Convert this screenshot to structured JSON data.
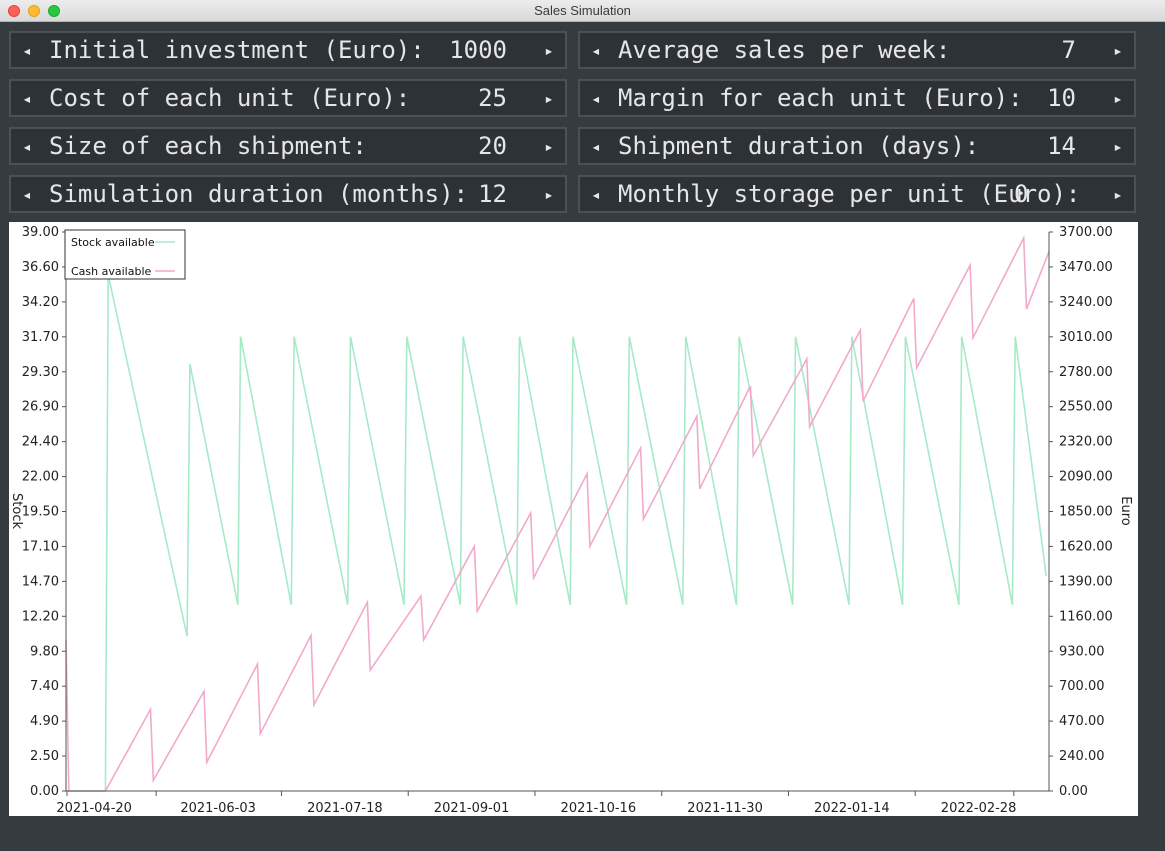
{
  "window": {
    "title": "Sales Simulation"
  },
  "params": [
    {
      "label": "Initial investment (Euro):",
      "value": "1000"
    },
    {
      "label": "Average sales per week:",
      "value": "7"
    },
    {
      "label": "Cost of each unit (Euro):",
      "value": "25"
    },
    {
      "label": "Margin for each unit (Euro):",
      "value": "10"
    },
    {
      "label": "Size of each shipment:",
      "value": "20"
    },
    {
      "label": "Shipment duration (days):",
      "value": "14"
    },
    {
      "label": "Simulation duration (months):",
      "value": "12"
    },
    {
      "label": "Monthly storage per unit (Euro):",
      "value": "0"
    }
  ],
  "arrows": {
    "decrease": "◂",
    "increase": "▸"
  },
  "colors": {
    "stock": "#a6eac8",
    "cash": "#f2a9cc",
    "background": "#353b3f"
  },
  "chart_data": {
    "type": "line",
    "ylabel_left": "Stock",
    "ylabel_right": "Euro",
    "ylim_left": [
      0,
      39
    ],
    "ylim_right": [
      0,
      3700
    ],
    "yticks_left": [
      "0.00",
      "2.50",
      "4.90",
      "7.40",
      "9.80",
      "12.20",
      "14.70",
      "17.10",
      "19.50",
      "22.00",
      "24.40",
      "26.90",
      "29.30",
      "31.70",
      "34.20",
      "36.60",
      "39.00"
    ],
    "yticks_right": [
      "0.00",
      "240.00",
      "470.00",
      "700.00",
      "930.00",
      "1160.00",
      "1390.00",
      "1620.00",
      "1850.00",
      "2090.00",
      "2320.00",
      "2550.00",
      "2780.00",
      "3010.00",
      "3240.00",
      "3470.00",
      "3700.00"
    ],
    "x_start": "2021-04-10",
    "x_end": "2022-03-25",
    "xticks": [
      "2021-04-20",
      "2021-06-03",
      "2021-07-18",
      "2021-09-01",
      "2021-10-16",
      "2021-11-30",
      "2022-01-14",
      "2022-02-28"
    ],
    "legend": {
      "position": "top-left",
      "entries": [
        "Stock available",
        "Cash available"
      ]
    },
    "series": [
      {
        "name": "Stock available",
        "axis": "left",
        "points": [
          [
            "2021-04-10",
            0
          ],
          [
            "2021-04-24",
            0
          ],
          [
            "2021-04-25",
            36
          ],
          [
            "2021-05-23",
            10.8
          ],
          [
            "2021-05-24",
            29.8
          ],
          [
            "2021-06-10",
            13
          ],
          [
            "2021-06-11",
            31.7
          ],
          [
            "2021-06-29",
            13
          ],
          [
            "2021-06-30",
            31.7
          ],
          [
            "2021-07-19",
            13
          ],
          [
            "2021-07-20",
            31.7
          ],
          [
            "2021-08-08",
            13
          ],
          [
            "2021-08-09",
            31.7
          ],
          [
            "2021-08-28",
            13
          ],
          [
            "2021-08-29",
            31.7
          ],
          [
            "2021-09-17",
            13
          ],
          [
            "2021-09-18",
            31.7
          ],
          [
            "2021-10-06",
            13
          ],
          [
            "2021-10-07",
            31.7
          ],
          [
            "2021-10-26",
            13
          ],
          [
            "2021-10-27",
            31.7
          ],
          [
            "2021-11-15",
            13
          ],
          [
            "2021-11-16",
            31.7
          ],
          [
            "2021-12-04",
            13
          ],
          [
            "2021-12-05",
            31.7
          ],
          [
            "2021-12-24",
            13
          ],
          [
            "2021-12-25",
            31.7
          ],
          [
            "2022-01-13",
            13
          ],
          [
            "2022-01-14",
            31.7
          ],
          [
            "2022-02-01",
            13
          ],
          [
            "2022-02-02",
            31.7
          ],
          [
            "2022-02-21",
            13
          ],
          [
            "2022-02-22",
            31.7
          ],
          [
            "2022-03-12",
            13
          ],
          [
            "2022-03-13",
            31.7
          ],
          [
            "2022-03-24",
            15
          ]
        ]
      },
      {
        "name": "Cash available",
        "axis": "right",
        "points": [
          [
            "2021-04-10",
            1000
          ],
          [
            "2021-04-11",
            0
          ],
          [
            "2021-04-24",
            0
          ],
          [
            "2021-05-10",
            540
          ],
          [
            "2021-05-11",
            70
          ],
          [
            "2021-05-29",
            660
          ],
          [
            "2021-05-30",
            190
          ],
          [
            "2021-06-17",
            840
          ],
          [
            "2021-06-18",
            380
          ],
          [
            "2021-07-06",
            1030
          ],
          [
            "2021-07-07",
            570
          ],
          [
            "2021-07-26",
            1250
          ],
          [
            "2021-07-27",
            800
          ],
          [
            "2021-08-14",
            1290
          ],
          [
            "2021-08-15",
            1000
          ],
          [
            "2021-09-02",
            1620
          ],
          [
            "2021-09-03",
            1190
          ],
          [
            "2021-09-22",
            1840
          ],
          [
            "2021-09-23",
            1410
          ],
          [
            "2021-10-12",
            2100
          ],
          [
            "2021-10-13",
            1620
          ],
          [
            "2021-10-31",
            2270
          ],
          [
            "2021-11-01",
            1800
          ],
          [
            "2021-11-20",
            2480
          ],
          [
            "2021-11-21",
            2000
          ],
          [
            "2021-12-09",
            2680
          ],
          [
            "2021-12-10",
            2220
          ],
          [
            "2021-12-29",
            2860
          ],
          [
            "2021-12-30",
            2410
          ],
          [
            "2022-01-17",
            3050
          ],
          [
            "2022-01-18",
            2580
          ],
          [
            "2022-02-05",
            3260
          ],
          [
            "2022-02-06",
            2800
          ],
          [
            "2022-02-25",
            3480
          ],
          [
            "2022-02-26",
            3000
          ],
          [
            "2022-03-16",
            3660
          ],
          [
            "2022-03-17",
            3190
          ],
          [
            "2022-03-25",
            3570
          ]
        ]
      }
    ]
  }
}
